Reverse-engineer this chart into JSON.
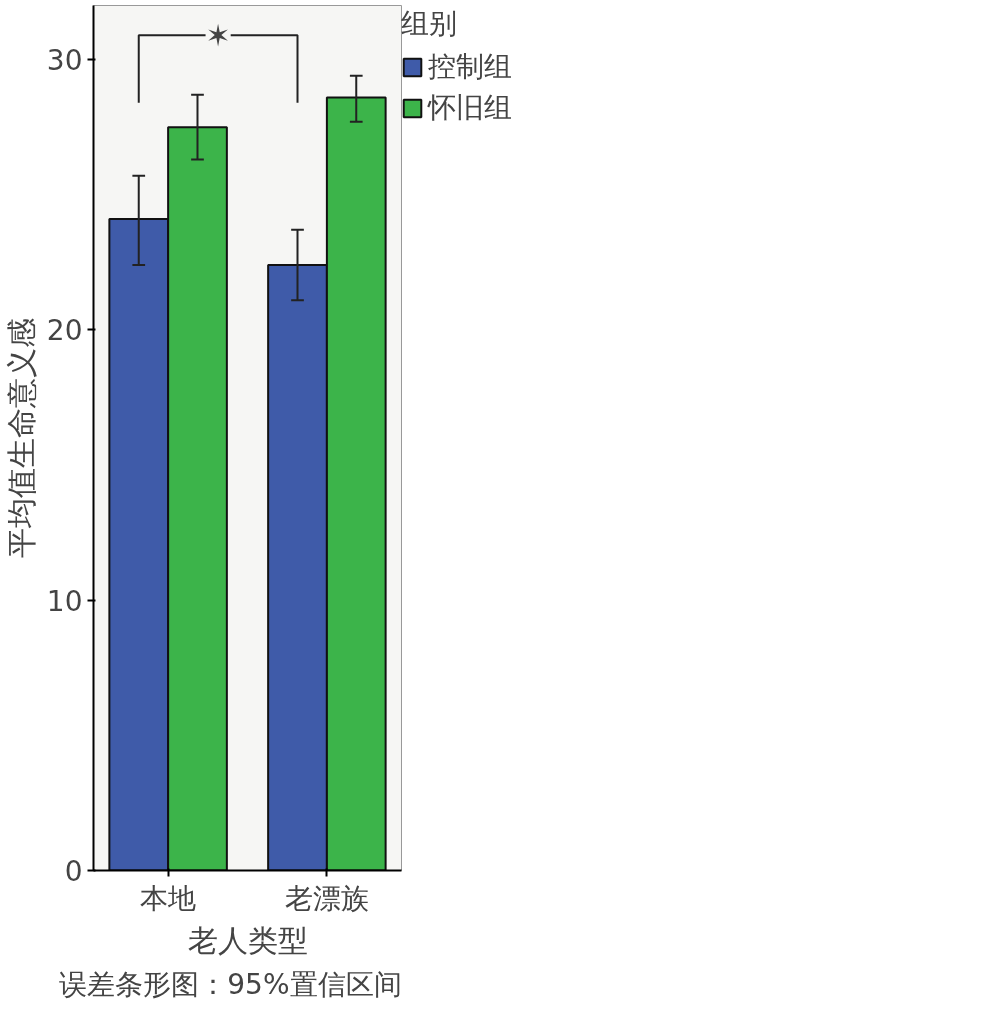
{
  "chart_data": {
    "type": "bar",
    "xlabel": "老人类型",
    "ylabel": "平均值生命意义感",
    "legend_title": "组别",
    "categories": [
      "本地",
      "老漂族"
    ],
    "series": [
      {
        "name": "控制组",
        "color": "#3f5ba9",
        "values": [
          24.1,
          22.4
        ],
        "errors": [
          [
            22.4,
            25.7
          ],
          [
            21.1,
            23.7
          ]
        ]
      },
      {
        "name": "怀旧组",
        "color": "#3cb44a",
        "values": [
          27.5,
          28.6
        ],
        "errors": [
          [
            26.3,
            28.7
          ],
          [
            27.7,
            29.4
          ]
        ]
      }
    ],
    "ylim": [
      0,
      32
    ],
    "yticks": [
      0,
      10,
      20,
      30
    ],
    "grid": false,
    "legend": "top right",
    "annotations": [
      "✶",
      "误差条形图：95%置信区间"
    ]
  }
}
